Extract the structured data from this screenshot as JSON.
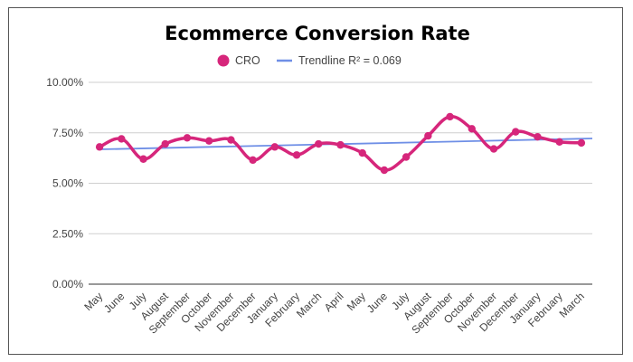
{
  "chart_data": {
    "type": "line",
    "title": "Ecommerce Conversion Rate",
    "xlabel": "",
    "ylabel": "",
    "ylim": [
      0,
      10
    ],
    "yticks": [
      "0.00%",
      "2.50%",
      "5.00%",
      "7.50%",
      "10.00%"
    ],
    "ytick_values": [
      0,
      2.5,
      5,
      7.5,
      10
    ],
    "grid": true,
    "legend_position": "top",
    "categories": [
      "May",
      "June",
      "July",
      "August",
      "September",
      "October",
      "November",
      "December",
      "January",
      "February",
      "March",
      "April",
      "May",
      "June",
      "July",
      "August",
      "September",
      "October",
      "November",
      "December",
      "January",
      "February",
      "March"
    ],
    "series": [
      {
        "name": "CRO",
        "color": "#d6267b",
        "values": [
          6.8,
          7.2,
          6.2,
          6.95,
          7.25,
          7.1,
          7.15,
          6.15,
          6.8,
          6.4,
          6.95,
          6.9,
          6.5,
          5.65,
          6.3,
          7.35,
          8.3,
          7.7,
          6.7,
          7.55,
          7.3,
          7.05,
          7.0
        ]
      }
    ],
    "trendline": {
      "name": "Trendline R² = 0.069",
      "color": "#6f8fe6",
      "start": 6.68,
      "end": 7.22
    }
  }
}
